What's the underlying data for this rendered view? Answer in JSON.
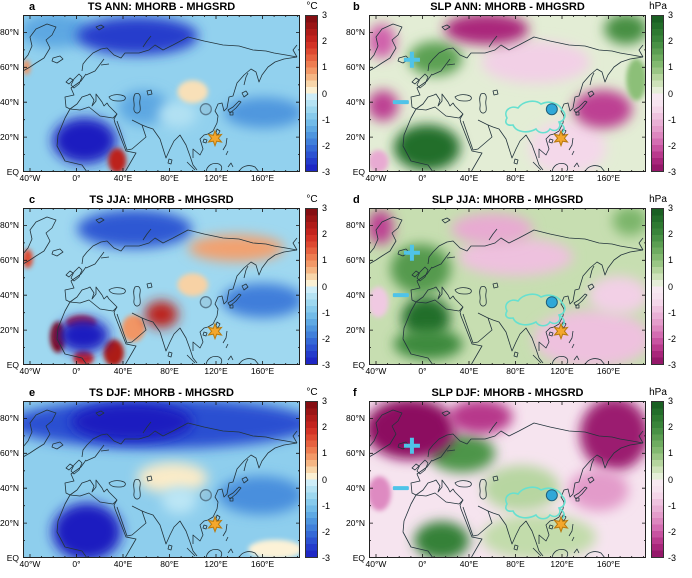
{
  "figure": {
    "kind": "climate model difference maps",
    "experiment": "MHORB - MHGSRD"
  },
  "axes": {
    "lon_labels": [
      "40°W",
      "0°",
      "40°E",
      "80°E",
      "120°E",
      "160°E"
    ],
    "lon_values": [
      -40,
      0,
      40,
      80,
      120,
      160
    ],
    "lat_labels": [
      "80°N",
      "60°N",
      "40°N",
      "20°N",
      "EQ"
    ],
    "lat_values": [
      80,
      60,
      40,
      20,
      0
    ]
  },
  "colorbars": {
    "ts": {
      "unit": "°C",
      "ticks": [
        "3",
        "2",
        "1",
        "0",
        "-1",
        "-2",
        "-3"
      ],
      "stops": [
        [
          3,
          "#7a0a10"
        ],
        [
          2.5,
          "#a51816"
        ],
        [
          2,
          "#cc2820"
        ],
        [
          1.5,
          "#e25437"
        ],
        [
          1,
          "#f08a5a"
        ],
        [
          0.5,
          "#f6c492"
        ],
        [
          0.25,
          "#f9e7c1"
        ],
        [
          0.02,
          "#fdf8e3"
        ],
        [
          -0.02,
          "#d8f2fa"
        ],
        [
          -0.5,
          "#a8ddf1"
        ],
        [
          -1,
          "#7cc4ea"
        ],
        [
          -1.5,
          "#55a0e0"
        ],
        [
          -2,
          "#3a75d8"
        ],
        [
          -2.5,
          "#2746cf"
        ],
        [
          -3,
          "#1b1cc0"
        ]
      ]
    },
    "slp": {
      "unit": "hPa",
      "ticks": [
        "3",
        "2",
        "1",
        "0",
        "-1",
        "-2",
        "-3"
      ],
      "stops": [
        [
          3,
          "#15591f"
        ],
        [
          2.5,
          "#28732d"
        ],
        [
          2,
          "#3e8a3e"
        ],
        [
          1.5,
          "#64a558"
        ],
        [
          1,
          "#8cbf78"
        ],
        [
          0.5,
          "#c2dcab"
        ],
        [
          0.02,
          "#eff3e4"
        ],
        [
          -0.02,
          "#f7ecf2"
        ],
        [
          -0.5,
          "#f6e0ee"
        ],
        [
          -1,
          "#ecb9da"
        ],
        [
          -1.5,
          "#e194c6"
        ],
        [
          -2,
          "#d060ab"
        ],
        [
          -2.5,
          "#b12d83"
        ],
        [
          -3,
          "#8c1161"
        ]
      ]
    }
  },
  "chart_data": {
    "type": "heatmap",
    "projection": "equirectangular, approx 46°W-192°E, 0-90°N",
    "value_range": [
      -3,
      3
    ],
    "markers": {
      "circle_open": {
        "x": 0.66,
        "y": 0.6,
        "color": "#5a7d92"
      },
      "circle_filled": {
        "x": 0.66,
        "y": 0.6,
        "fill": "#2fa8d8",
        "edge": "#20607c"
      },
      "star": {
        "x": 0.693,
        "y": 0.785,
        "fill": "#f4a72c",
        "edge": "#b87a10"
      },
      "plus": {
        "x": 0.155,
        "y": 0.285,
        "color": "#4fc3e8"
      },
      "minus": {
        "x": 0.115,
        "y": 0.555,
        "color": "#4fc3e8"
      },
      "plateau_outline": {
        "color": "#66e0d0"
      }
    },
    "panels": [
      {
        "id": "a",
        "variable": "TS",
        "season": "ANN",
        "title": "TS ANN: MHORB - MHGSRD",
        "unit": "°C",
        "cmap": "ts",
        "base": -0.75,
        "markers": [
          "circle_open",
          "star"
        ],
        "features": [
          {
            "name": "north-pacific-cool-band",
            "lon": [
              130,
              192
            ],
            "lat": [
              26,
              42
            ],
            "value": -1.6
          },
          {
            "name": "greenland-arctic-cool",
            "lon": [
              -46,
              10
            ],
            "lat": [
              72,
              90
            ],
            "value": -1.4
          },
          {
            "name": "central-asia-cool",
            "lon": [
              38,
              78
            ],
            "lat": [
              28,
              46
            ],
            "value": -1.4
          },
          {
            "name": "tibet-pale",
            "lon": [
              72,
              102
            ],
            "lat": [
              26,
              40
            ],
            "value": -0.4
          },
          {
            "name": "mongolia-mild-warm",
            "lon": [
              88,
              112
            ],
            "lat": [
              40,
              52
            ],
            "value": 0.3
          },
          {
            "name": "barents-kara-cool",
            "lon": [
              5,
              100
            ],
            "lat": [
              68,
              88
            ],
            "value": -2.6
          },
          {
            "name": "sahara-strong-cooling",
            "lon": [
              -18,
              32
            ],
            "lat": [
              6,
              30
            ],
            "value": -3
          },
          {
            "name": "east-africa-warm",
            "lon": [
              28,
              42
            ],
            "lat": [
              0,
              13
            ],
            "value": 2.2
          },
          {
            "name": "s-greenland-coast-warm",
            "lon": [
              -46,
              -40
            ],
            "lat": [
              56,
              64
            ],
            "value": 0.9
          }
        ]
      },
      {
        "id": "b",
        "variable": "SLP",
        "season": "ANN",
        "title": "SLP ANN: MHORB - MHGSRD",
        "unit": "hPa",
        "cmap": "slp",
        "base": 0.15,
        "markers": [
          "plus",
          "minus",
          "plateau_outline",
          "circle_filled",
          "star"
        ],
        "features": [
          {
            "name": "russia-weak-low",
            "lon": [
              55,
              140
            ],
            "lat": [
              52,
              74
            ],
            "value": -0.7
          },
          {
            "name": "se-asia-weak-low",
            "lon": [
              95,
              155
            ],
            "lat": [
              0,
              28
            ],
            "value": -0.6
          },
          {
            "name": "scandinavia-high",
            "lon": [
              -10,
              32
            ],
            "lat": [
              56,
              74
            ],
            "value": 1.6
          },
          {
            "name": "west-africa-high",
            "lon": [
              -22,
              30
            ],
            "lat": [
              2,
              26
            ],
            "value": 2.6
          },
          {
            "name": "arctic-low",
            "lon": [
              22,
              88
            ],
            "lat": [
              74,
              90
            ],
            "value": -2.6
          },
          {
            "name": "greenland-low",
            "lon": [
              -46,
              -24
            ],
            "lat": [
              66,
              84
            ],
            "value": -2.0
          },
          {
            "name": "midatlantic-low",
            "lon": [
              -46,
              -22
            ],
            "lat": [
              30,
              46
            ],
            "value": -2.3
          },
          {
            "name": "nw-pacific-low",
            "lon": [
              132,
              178
            ],
            "lat": [
              26,
              46
            ],
            "value": -2.3
          },
          {
            "name": "arctic-pacific-high",
            "lon": [
              158,
              192
            ],
            "lat": [
              74,
              90
            ],
            "value": 1.9
          },
          {
            "name": "east-pacific-high",
            "lon": [
              176,
              192
            ],
            "lat": [
              42,
              64
            ],
            "value": 1.0
          },
          {
            "name": "tropical-atlantic-low",
            "lon": [
              -46,
              -30
            ],
            "lat": [
              0,
              12
            ],
            "value": -1.2
          }
        ]
      },
      {
        "id": "c",
        "variable": "TS",
        "season": "JJA",
        "title": "TS JJA: MHORB - MHGSRD",
        "unit": "°C",
        "cmap": "ts",
        "base": -0.6,
        "markers": [
          "circle_open",
          "star"
        ],
        "features": [
          {
            "name": "north-pacific-cool-band",
            "lon": [
              128,
              192
            ],
            "lat": [
              28,
              46
            ],
            "value": -1.9
          },
          {
            "name": "arctic-cool",
            "lon": [
              5,
              95
            ],
            "lat": [
              68,
              88
            ],
            "value": -2.3
          },
          {
            "name": "ne-siberia-warm-band",
            "lon": [
              100,
              175
            ],
            "lat": [
              60,
              74
            ],
            "value": 0.8
          },
          {
            "name": "mongolia-mild-warm",
            "lon": [
              88,
              112
            ],
            "lat": [
              40,
              52
            ],
            "value": 0.4
          },
          {
            "name": "arabia-warm",
            "lon": [
              40,
              58
            ],
            "lat": [
              14,
              28
            ],
            "value": 0.9
          },
          {
            "name": "sahel-west-warm",
            "lon": [
              -22,
              -10
            ],
            "lat": [
              8,
              24
            ],
            "value": 2.8
          },
          {
            "name": "sahel-north-warm",
            "lon": [
              -8,
              16
            ],
            "lat": [
              20,
              28
            ],
            "value": 2.0
          },
          {
            "name": "south-edge-warm",
            "lon": [
              -2,
              14
            ],
            "lat": [
              0,
              8
            ],
            "value": 2.0
          },
          {
            "name": "east-africa-warm",
            "lon": [
              24,
              40
            ],
            "lat": [
              0,
              14
            ],
            "value": 2.4
          },
          {
            "name": "sahara-core-cooling",
            "lon": [
              -14,
              26
            ],
            "lat": [
              8,
              26
            ],
            "value": -3
          },
          {
            "name": "india-himalaya-warm",
            "lon": [
              60,
              86
            ],
            "lat": [
              22,
              36
            ],
            "value": 2.2
          },
          {
            "name": "s-greenland-warm",
            "lon": [
              -46,
              -38
            ],
            "lat": [
              56,
              66
            ],
            "value": 1.6
          }
        ]
      },
      {
        "id": "d",
        "variable": "SLP",
        "season": "JJA",
        "title": "SLP JJA: MHORB - MHGSRD",
        "unit": "hPa",
        "cmap": "slp",
        "base": 0.45,
        "markers": [
          "plus",
          "minus",
          "plateau_outline",
          "circle_filled",
          "star"
        ],
        "features": [
          {
            "name": "russia-weak-low",
            "lon": [
              35,
              125
            ],
            "lat": [
              52,
              72
            ],
            "value": -0.9
          },
          {
            "name": "se-asia-pacific-low",
            "lon": [
              100,
              192
            ],
            "lat": [
              0,
              30
            ],
            "value": -0.9
          },
          {
            "name": "atlantic-europe-high",
            "lon": [
              -25,
              22
            ],
            "lat": [
              42,
              68
            ],
            "value": 1.7
          },
          {
            "name": "nw-africa-med-high",
            "lon": [
              -16,
              22
            ],
            "lat": [
              16,
              38
            ],
            "value": 2.6
          },
          {
            "name": "west-africa-high",
            "lon": [
              -22,
              32
            ],
            "lat": [
              4,
              20
            ],
            "value": 2.0
          },
          {
            "name": "greenland-low",
            "lon": [
              -46,
              -26
            ],
            "lat": [
              70,
              88
            ],
            "value": -2.3
          },
          {
            "name": "arctic-weak-low",
            "lon": [
              28,
              92
            ],
            "lat": [
              70,
              86
            ],
            "value": -1.2
          },
          {
            "name": "midatlantic-weak-low",
            "lon": [
              -46,
              -30
            ],
            "lat": [
              28,
              44
            ],
            "value": -0.8
          },
          {
            "name": "pacific-japan-weak-low",
            "lon": [
              145,
              192
            ],
            "lat": [
              30,
              50
            ],
            "value": -0.7
          },
          {
            "name": "arctic-pacific-high",
            "lon": [
              165,
              192
            ],
            "lat": [
              75,
              90
            ],
            "value": 1.2
          }
        ]
      },
      {
        "id": "e",
        "variable": "TS",
        "season": "DJF",
        "title": "TS DJF: MHORB - MHGSRD",
        "unit": "°C",
        "cmap": "ts",
        "base": -0.8,
        "markers": [
          "circle_open",
          "star"
        ],
        "features": [
          {
            "name": "north-pacific-cool-band",
            "lon": [
              125,
              192
            ],
            "lat": [
              26,
              46
            ],
            "value": -1.7
          },
          {
            "name": "kazakh-mild",
            "lon": [
              55,
              110
            ],
            "lat": [
              38,
              54
            ],
            "value": 0.2
          },
          {
            "name": "arctic-wide-cool",
            "lon": [
              -46,
              192
            ],
            "lat": [
              64,
              90
            ],
            "value": -2.4
          },
          {
            "name": "barents-dark-cool",
            "lon": [
              0,
              95
            ],
            "lat": [
              68,
              88
            ],
            "value": -3
          },
          {
            "name": "africa-strong-cooling",
            "lon": [
              -18,
              36
            ],
            "lat": [
              0,
              30
            ],
            "value": -3
          },
          {
            "name": "tibet-pale",
            "lon": [
              75,
              102
            ],
            "lat": [
              26,
              40
            ],
            "value": -0.3
          },
          {
            "name": "se-corner-mild",
            "lon": [
              150,
              192
            ],
            "lat": [
              0,
              10
            ],
            "value": 0.1
          }
        ]
      },
      {
        "id": "f",
        "variable": "SLP",
        "season": "DJF",
        "title": "SLP DJF: MHORB - MHGSRD",
        "unit": "hPa",
        "cmap": "slp",
        "base": -0.35,
        "markers": [
          "plus",
          "minus",
          "plateau_outline",
          "circle_filled",
          "star"
        ],
        "features": [
          {
            "name": "mid-asia-weak-high",
            "lon": [
              55,
              115
            ],
            "lat": [
              28,
              52
            ],
            "value": 0.6
          },
          {
            "name": "s-asia-weak-high",
            "lon": [
              55,
              145
            ],
            "lat": [
              0,
              24
            ],
            "value": 0.5
          },
          {
            "name": "europe-high",
            "lon": [
              8,
              60
            ],
            "lat": [
              50,
              70
            ],
            "value": 1.8
          },
          {
            "name": "africa-high",
            "lon": [
              -5,
              38
            ],
            "lat": [
              0,
              20
            ],
            "value": 2.2
          },
          {
            "name": "natlantic-arctic-deep-low",
            "lon": [
              -46,
              25
            ],
            "lat": [
              58,
              90
            ],
            "value": -3
          },
          {
            "name": "arctic-central-low",
            "lon": [
              25,
              75
            ],
            "lat": [
              72,
              90
            ],
            "value": -2.4
          },
          {
            "name": "nw-pacific-deep-low",
            "lon": [
              138,
              192
            ],
            "lat": [
              52,
              90
            ],
            "value": -2.8
          },
          {
            "name": "japan-low",
            "lon": [
              128,
              175
            ],
            "lat": [
              28,
              50
            ],
            "value": -1.4
          },
          {
            "name": "midatlantic-low",
            "lon": [
              -46,
              -28
            ],
            "lat": [
              28,
              46
            ],
            "value": -1.6
          }
        ]
      }
    ]
  }
}
